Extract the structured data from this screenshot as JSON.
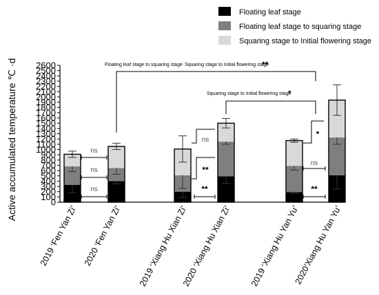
{
  "chart_data": {
    "type": "bar",
    "stacked": true,
    "ylabel": "Active accumulated temperature ℃ ·d",
    "ylim": [
      0,
      2600
    ],
    "yticks": [
      0,
      100,
      200,
      300,
      400,
      500,
      600,
      700,
      800,
      900,
      1000,
      1100,
      1200,
      1300,
      1400,
      1500,
      1600,
      1700,
      1800,
      1900,
      2000,
      2100,
      2200,
      2300,
      2400,
      2500,
      2600
    ],
    "categories": [
      "2019 ‘Fen Yan Zi’",
      "2020 ‘Fen Yan Zi’",
      "2019 ‘Xiang Hu Xian Zi’",
      "2020 ‘Xiang Hu Xian Zi’",
      "2019 ‘Xiang Hu Yan Yu’",
      "2020’Xiang Hu Yan Yu’"
    ],
    "series": [
      {
        "name": "Floating leaf stage",
        "color": "#000000",
        "values": [
          330,
          400,
          200,
          490,
          190,
          510
        ],
        "errors": [
          150,
          50,
          110,
          130,
          20,
          260
        ]
      },
      {
        "name": "Floating leaf stage to squaring stage",
        "color": "#7f7f7f",
        "values": [
          350,
          250,
          310,
          660,
          500,
          720
        ],
        "errors": [
          100,
          120,
          250,
          50,
          80,
          130
        ]
      },
      {
        "name": "Squaring stage to Initial flowering stage",
        "color": "#d9d9d9",
        "values": [
          230,
          410,
          500,
          350,
          480,
          710
        ],
        "errors": [
          60,
          60,
          250,
          90,
          30,
          290
        ]
      }
    ],
    "legend_position": "top-right",
    "annotations": [
      {
        "text": "Floating leaf stage to squaring stage",
        "between": [
          1,
          5
        ]
      },
      {
        "text": "Squaring stage to Initial flowering stage",
        "between": [
          1,
          5
        ],
        "mark": "**"
      },
      {
        "text": "Squaring stage to Initial flowering stage",
        "between": [
          3,
          5
        ],
        "mark": "*"
      }
    ],
    "pairwise": [
      {
        "pair": [
          0,
          1
        ],
        "stage": "Squaring stage to Initial flowering stage",
        "label": "ns"
      },
      {
        "pair": [
          0,
          1
        ],
        "stage": "Floating leaf stage to squaring stage",
        "label": "ns"
      },
      {
        "pair": [
          0,
          1
        ],
        "stage": "Floating leaf stage",
        "label": "ns"
      },
      {
        "pair": [
          2,
          3
        ],
        "stage": "Squaring stage to Initial flowering stage",
        "label": "ns"
      },
      {
        "pair": [
          2,
          3
        ],
        "stage": "Floating leaf stage to squaring stage",
        "label": "**"
      },
      {
        "pair": [
          2,
          3
        ],
        "stage": "Floating leaf stage",
        "label": "**"
      },
      {
        "pair": [
          4,
          5
        ],
        "stage": "Squaring stage to Initial flowering stage",
        "label": "*"
      },
      {
        "pair": [
          4,
          5
        ],
        "stage": "Floating leaf stage to squaring stage",
        "label": "ns"
      },
      {
        "pair": [
          4,
          5
        ],
        "stage": "Floating leaf stage",
        "label": "**"
      }
    ]
  }
}
